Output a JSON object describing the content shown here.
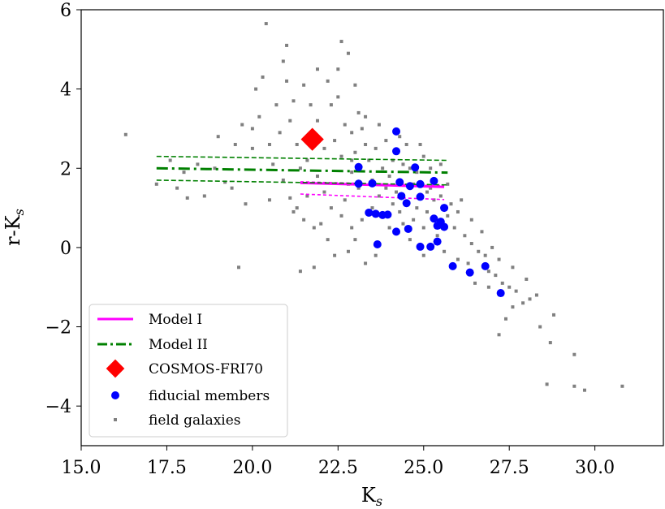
{
  "chart_data": {
    "type": "scatter",
    "title": "",
    "xlabel": {
      "main": "K",
      "sub": "s"
    },
    "ylabel": {
      "main": "r-K",
      "sub": "s"
    },
    "xlim": [
      15.0,
      32.0
    ],
    "ylim": [
      -5.0,
      6.0
    ],
    "xticks": [
      15.0,
      17.5,
      20.0,
      22.5,
      25.0,
      27.5,
      30.0
    ],
    "xtick_labels": [
      "15.0",
      "17.5",
      "20.0",
      "22.5",
      "25.0",
      "27.5",
      "30.0"
    ],
    "yticks": [
      -4,
      -2,
      0,
      2,
      4,
      6
    ],
    "ytick_labels": [
      "−4",
      "−2",
      "0",
      "2",
      "4",
      "6"
    ],
    "legend_position": "bottom-left",
    "legend": [
      {
        "label": "Model I",
        "marker": "solid-line",
        "color": "#ff00ff"
      },
      {
        "label": "Model II",
        "marker": "dashdot-line",
        "color": "#008000"
      },
      {
        "label": "COSMOS-FRI70",
        "marker": "diamond",
        "color": "#ff0000"
      },
      {
        "label": "fiducial members",
        "marker": "circle",
        "color": "#0000ff"
      },
      {
        "label": "field galaxies",
        "marker": "square",
        "color": "#808080"
      }
    ],
    "series": [
      {
        "name": "Model I",
        "kind": "line",
        "color": "#ff00ff",
        "x": [
          21.4,
          25.6
        ],
        "y": [
          1.63,
          1.53
        ],
        "band_upper": {
          "x": [
            21.4,
            25.6
          ],
          "y": [
            1.66,
            1.56
          ]
        },
        "band_lower": {
          "x": [
            21.4,
            25.6
          ],
          "y": [
            1.35,
            1.21
          ]
        }
      },
      {
        "name": "Model II",
        "kind": "line",
        "color": "#008000",
        "x": [
          17.2,
          25.7
        ],
        "y": [
          2.0,
          1.89
        ],
        "band_upper": {
          "x": [
            17.2,
            25.7
          ],
          "y": [
            2.3,
            2.2
          ]
        },
        "band_lower": {
          "x": [
            17.2,
            25.7
          ],
          "y": [
            1.7,
            1.58
          ]
        }
      },
      {
        "name": "COSMOS-FRI70",
        "kind": "diamond",
        "color": "#ff0000",
        "points": [
          [
            21.75,
            2.73
          ]
        ]
      },
      {
        "name": "fiducial members",
        "kind": "circle",
        "color": "#0000ff",
        "points": [
          [
            24.2,
            2.93
          ],
          [
            24.2,
            2.43
          ],
          [
            23.1,
            2.03
          ],
          [
            24.75,
            2.02
          ],
          [
            24.3,
            1.65
          ],
          [
            25.3,
            1.68
          ],
          [
            23.1,
            1.61
          ],
          [
            23.5,
            1.62
          ],
          [
            24.6,
            1.55
          ],
          [
            24.9,
            1.6
          ],
          [
            24.35,
            1.3
          ],
          [
            24.9,
            1.28
          ],
          [
            24.5,
            1.12
          ],
          [
            25.6,
            1.0
          ],
          [
            23.4,
            0.88
          ],
          [
            23.6,
            0.85
          ],
          [
            23.95,
            0.83
          ],
          [
            23.8,
            0.82
          ],
          [
            25.3,
            0.73
          ],
          [
            25.5,
            0.65
          ],
          [
            25.4,
            0.55
          ],
          [
            25.6,
            0.52
          ],
          [
            24.2,
            0.4
          ],
          [
            24.55,
            0.47
          ],
          [
            25.4,
            0.15
          ],
          [
            23.65,
            0.08
          ],
          [
            24.9,
            0.02
          ],
          [
            25.2,
            0.02
          ],
          [
            25.85,
            -0.47
          ],
          [
            26.8,
            -0.47
          ],
          [
            26.35,
            -0.63
          ],
          [
            27.25,
            -1.15
          ]
        ]
      },
      {
        "name": "field galaxies",
        "kind": "square",
        "color": "#808080",
        "points": [
          [
            16.3,
            2.85
          ],
          [
            17.2,
            1.6
          ],
          [
            17.8,
            1.5
          ],
          [
            18.1,
            1.25
          ],
          [
            18.6,
            1.3
          ],
          [
            18.9,
            2.0
          ],
          [
            19.2,
            1.65
          ],
          [
            19.6,
            -0.5
          ],
          [
            19.7,
            3.1
          ],
          [
            20.3,
            4.3
          ],
          [
            20.4,
            5.65
          ],
          [
            20.9,
            4.7
          ],
          [
            21.0,
            4.2
          ],
          [
            21.1,
            3.2
          ],
          [
            21.2,
            3.7
          ],
          [
            21.5,
            4.1
          ],
          [
            21.7,
            3.6
          ],
          [
            21.9,
            4.5
          ],
          [
            22.2,
            4.2
          ],
          [
            22.5,
            3.8
          ],
          [
            22.6,
            5.2
          ],
          [
            22.8,
            4.9
          ],
          [
            22.7,
            3.1
          ],
          [
            23.0,
            4.1
          ],
          [
            23.1,
            3.4
          ],
          [
            23.3,
            3.3
          ],
          [
            23.2,
            3.0
          ],
          [
            20.2,
            3.3
          ],
          [
            20.0,
            2.5
          ],
          [
            20.5,
            2.6
          ],
          [
            20.8,
            2.9
          ],
          [
            20.6,
            2.1
          ],
          [
            20.9,
            1.7
          ],
          [
            21.1,
            1.25
          ],
          [
            21.3,
            1.0
          ],
          [
            21.5,
            0.7
          ],
          [
            21.8,
            0.5
          ],
          [
            22.2,
            0.2
          ],
          [
            22.4,
            -0.2
          ],
          [
            21.8,
            -0.5
          ],
          [
            21.4,
            -0.6
          ],
          [
            22.7,
            1.2
          ],
          [
            22.9,
            1.9
          ],
          [
            22.6,
            2.3
          ],
          [
            23.0,
            2.4
          ],
          [
            23.3,
            2.6
          ],
          [
            23.6,
            2.5
          ],
          [
            23.8,
            2.0
          ],
          [
            24.0,
            1.8
          ],
          [
            24.4,
            2.1
          ],
          [
            24.6,
            2.0
          ],
          [
            24.8,
            1.9
          ],
          [
            25.0,
            2.3
          ],
          [
            25.2,
            1.5
          ],
          [
            25.5,
            1.3
          ],
          [
            25.8,
            1.1
          ],
          [
            26.0,
            0.9
          ],
          [
            25.9,
            0.5
          ],
          [
            26.2,
            0.3
          ],
          [
            26.4,
            0.1
          ],
          [
            26.6,
            -0.1
          ],
          [
            26.8,
            -0.2
          ],
          [
            26.9,
            -0.6
          ],
          [
            27.1,
            -0.7
          ],
          [
            27.3,
            -0.9
          ],
          [
            27.5,
            -1.0
          ],
          [
            27.7,
            -1.1
          ],
          [
            27.9,
            -1.4
          ],
          [
            28.1,
            -1.3
          ],
          [
            27.6,
            -1.5
          ],
          [
            27.4,
            -1.8
          ],
          [
            27.2,
            -2.2
          ],
          [
            28.3,
            -1.2
          ],
          [
            28.4,
            -2.0
          ],
          [
            28.6,
            -3.45
          ],
          [
            28.7,
            -2.4
          ],
          [
            28.8,
            -1.7
          ],
          [
            29.4,
            -2.7
          ],
          [
            29.4,
            -3.5
          ],
          [
            29.7,
            -3.6
          ],
          [
            30.8,
            -3.5
          ],
          [
            24.1,
            1.1
          ],
          [
            24.3,
            0.9
          ],
          [
            24.7,
            0.7
          ],
          [
            25.0,
            0.5
          ],
          [
            25.1,
            0.9
          ],
          [
            25.3,
            1.2
          ],
          [
            23.7,
            1.3
          ],
          [
            23.5,
            1.0
          ],
          [
            23.2,
            0.7
          ],
          [
            22.9,
            0.5
          ],
          [
            22.6,
            0.8
          ],
          [
            22.3,
            1.0
          ],
          [
            22.1,
            1.4
          ],
          [
            21.9,
            1.8
          ],
          [
            21.6,
            2.2
          ],
          [
            21.4,
            2.0
          ],
          [
            22.4,
            2.7
          ],
          [
            23.4,
            2.2
          ],
          [
            24.5,
            2.6
          ],
          [
            25.2,
            2.0
          ],
          [
            25.7,
            1.6
          ],
          [
            26.1,
            1.2
          ],
          [
            26.4,
            0.7
          ],
          [
            26.7,
            0.4
          ],
          [
            27.0,
            0.0
          ],
          [
            27.2,
            -0.3
          ],
          [
            26.5,
            -0.9
          ],
          [
            26.0,
            -0.3
          ],
          [
            25.6,
            -0.1
          ],
          [
            25.0,
            -0.2
          ],
          [
            24.6,
            0.2
          ],
          [
            24.0,
            0.5
          ],
          [
            23.6,
            -0.2
          ],
          [
            23.3,
            -0.4
          ],
          [
            22.8,
            -0.1
          ],
          [
            22.0,
            0.6
          ],
          [
            21.2,
            0.9
          ],
          [
            20.5,
            1.2
          ],
          [
            19.8,
            1.1
          ],
          [
            19.4,
            1.5
          ],
          [
            18.4,
            2.1
          ],
          [
            18.0,
            1.9
          ],
          [
            17.6,
            2.2
          ],
          [
            19.0,
            2.8
          ],
          [
            19.5,
            2.6
          ],
          [
            20.0,
            3.0
          ],
          [
            20.7,
            3.6
          ],
          [
            21.3,
            2.6
          ],
          [
            21.9,
            3.2
          ],
          [
            22.3,
            3.6
          ],
          [
            23.7,
            3.1
          ],
          [
            24.3,
            2.8
          ],
          [
            24.9,
            2.6
          ],
          [
            25.5,
            2.1
          ],
          [
            22.1,
            2.5
          ],
          [
            22.9,
            2.9
          ],
          [
            23.9,
            2.7
          ],
          [
            23.1,
            1.5
          ],
          [
            24.2,
            1.4
          ],
          [
            24.8,
            1.0
          ],
          [
            25.4,
            0.3
          ],
          [
            25.7,
            0.8
          ],
          [
            26.3,
            -0.4
          ],
          [
            26.9,
            -1.0
          ],
          [
            27.6,
            -0.5
          ],
          [
            28.0,
            -0.8
          ],
          [
            22.5,
            4.5
          ],
          [
            21.0,
            5.1
          ],
          [
            22.9,
            2.2
          ],
          [
            20.1,
            4.0
          ],
          [
            21.6,
            1.3
          ],
          [
            23.5,
            1.7
          ],
          [
            24.1,
            2.2
          ],
          [
            24.7,
            1.6
          ],
          [
            25.1,
            1.4
          ],
          [
            23.9,
            1.5
          ],
          [
            22.8,
            1.6
          ],
          [
            24.4,
            0.6
          ],
          [
            23.0,
            0.2
          ]
        ]
      }
    ]
  }
}
